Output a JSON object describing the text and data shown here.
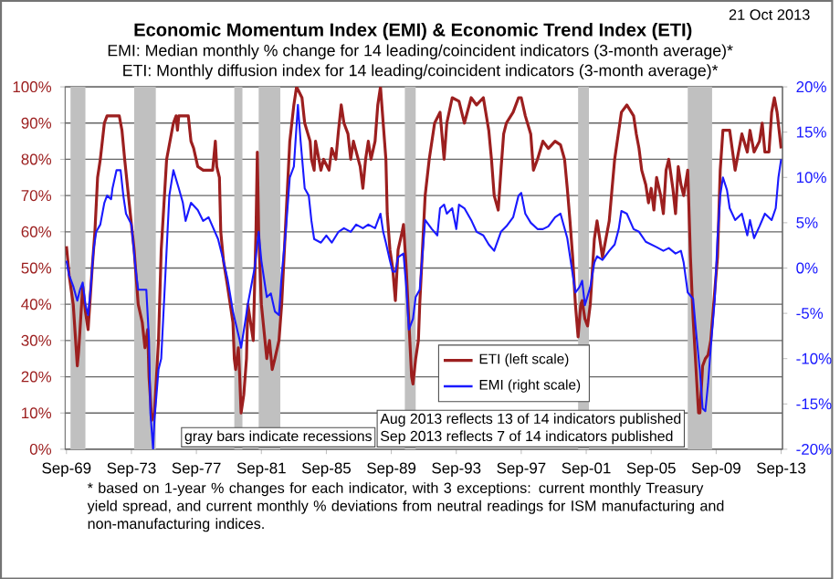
{
  "chart_data": {
    "type": "line",
    "title": "Economic Momentum Index (EMI) & Economic Trend Index (ETI)",
    "subtitle": "EMI:  Median monthly % change for 14 leading/coincident indicators (3-month average)*",
    "annotations": [
      "ETI: Monthly diffusion index for 14 leading/coincident indicators (3-month average)*",
      "21 Oct 2013",
      "gray bars indicate recessions",
      "Aug 2013 reflects 13 of 14 indicators published",
      "Sep 2013 reflects  7 of 14 indicators published",
      "* based on 1-year % changes for each indicator, with 3 exceptions: current monthly Treasury yield spread, and current monthly % deviations from neutral readings for ISM manufacturing and non-manufacturing  indices."
    ],
    "xlim": [
      "1969-08",
      "2013-10"
    ],
    "xticks": [
      {
        "value": "1969-09",
        "label": "Sep-69"
      },
      {
        "value": "1973-09",
        "label": "Sep-73"
      },
      {
        "value": "1977-09",
        "label": "Sep-77"
      },
      {
        "value": "1981-09",
        "label": "Sep-81"
      },
      {
        "value": "1985-09",
        "label": "Sep-85"
      },
      {
        "value": "1989-09",
        "label": "Sep-89"
      },
      {
        "value": "1993-09",
        "label": "Sep-93"
      },
      {
        "value": "1997-09",
        "label": "Sep-97"
      },
      {
        "value": "2001-09",
        "label": "Sep-01"
      },
      {
        "value": "2005-09",
        "label": "Sep-05"
      },
      {
        "value": "2009-09",
        "label": "Sep-09"
      },
      {
        "value": "2013-09",
        "label": "Sep-13"
      }
    ],
    "ylim": [
      0,
      100
    ],
    "yticks": [
      {
        "value": 0,
        "label": "0%"
      },
      {
        "value": 10,
        "label": "10%"
      },
      {
        "value": 20,
        "label": "20%"
      },
      {
        "value": 30,
        "label": "30%"
      },
      {
        "value": 40,
        "label": "40%"
      },
      {
        "value": 50,
        "label": "50%"
      },
      {
        "value": 60,
        "label": "60%"
      },
      {
        "value": 70,
        "label": "70%"
      },
      {
        "value": 80,
        "label": "80%"
      },
      {
        "value": 90,
        "label": "90%"
      },
      {
        "value": 100,
        "label": "100%"
      }
    ],
    "y2lim": [
      -20,
      20
    ],
    "y2ticks": [
      {
        "value": -20,
        "label": "-20%"
      },
      {
        "value": -15,
        "label": "-15%"
      },
      {
        "value": -10,
        "label": "-10%"
      },
      {
        "value": -5,
        "label": "-5%"
      },
      {
        "value": 0,
        "label": "0%"
      },
      {
        "value": 5,
        "label": "5%"
      },
      {
        "value": 10,
        "label": "10%"
      },
      {
        "value": 15,
        "label": "15%"
      },
      {
        "value": 20,
        "label": "20%"
      }
    ],
    "grid": "y",
    "legend": "bottom",
    "line_style": "solid",
    "bands": [
      {
        "axis": "x",
        "from": "1969-12",
        "to": "1970-11",
        "color": "#c0c0c0"
      },
      {
        "axis": "x",
        "from": "1973-11",
        "to": "1975-03",
        "color": "#c0c0c0"
      },
      {
        "axis": "x",
        "from": "1980-01",
        "to": "1980-07",
        "color": "#c0c0c0"
      },
      {
        "axis": "x",
        "from": "1981-07",
        "to": "1982-11",
        "color": "#c0c0c0"
      },
      {
        "axis": "x",
        "from": "1990-07",
        "to": "1991-03",
        "color": "#c0c0c0"
      },
      {
        "axis": "x",
        "from": "2001-03",
        "to": "2001-11",
        "color": "#c0c0c0"
      },
      {
        "axis": "x",
        "from": "2007-12",
        "to": "2009-06",
        "color": "#c0c0c0"
      }
    ],
    "series": [
      {
        "name": "ETI (left scale)",
        "color": "#9c1f1f",
        "x": [
          "1969-09",
          "1969-11",
          "1970-02",
          "1970-05",
          "1970-06",
          "1970-09",
          "1970-11",
          "1971-01",
          "1971-04",
          "1971-06",
          "1971-08",
          "1971-10",
          "1972-01",
          "1972-03",
          "1972-12",
          "1973-02",
          "1973-04",
          "1973-09",
          "1973-11",
          "1974-02",
          "1974-05",
          "1974-07",
          "1974-09",
          "1974-10",
          "1974-12",
          "1975-02",
          "1975-05",
          "1975-07",
          "1975-11",
          "1976-04",
          "1976-06",
          "1976-07",
          "1976-08",
          "1977-03",
          "1977-05",
          "1977-07",
          "1977-10",
          "1978-02",
          "1978-09",
          "1978-11",
          "1978-12",
          "1979-02",
          "1979-03",
          "1979-05",
          "1979-08",
          "1979-10",
          "1979-12",
          "1980-01",
          "1980-02",
          "1980-04",
          "1980-05",
          "1980-06",
          "1980-08",
          "1980-10",
          "1980-11",
          "1981-03",
          "1981-05",
          "1981-06",
          "1981-07",
          "1981-09",
          "1982-01",
          "1982-03",
          "1982-05",
          "1982-07",
          "1982-10",
          "1982-12",
          "1983-02",
          "1983-04",
          "1983-06",
          "1983-09",
          "1983-11",
          "1984-03",
          "1984-05",
          "1984-09",
          "1984-10",
          "1984-12",
          "1985-01",
          "1985-05",
          "1985-07",
          "1985-11",
          "1986-01",
          "1986-04",
          "1986-06",
          "1986-08",
          "1986-10",
          "1987-01",
          "1987-03",
          "1987-05",
          "1987-10",
          "1987-12",
          "1988-02",
          "1988-04",
          "1988-06",
          "1988-09",
          "1988-11",
          "1989-01",
          "1989-03",
          "1989-05",
          "1989-06",
          "1989-08",
          "1989-10",
          "1989-12",
          "1990-02",
          "1990-05",
          "1990-06",
          "1990-08",
          "1990-10",
          "1990-12",
          "1991-01",
          "1991-03",
          "1991-05",
          "1991-06",
          "1991-08",
          "1991-10",
          "1992-01",
          "1992-05",
          "1992-09",
          "1992-12",
          "1993-02",
          "1993-06",
          "1993-11",
          "1994-03",
          "1994-08",
          "1994-12",
          "1995-05",
          "1995-09",
          "1995-11",
          "1996-01",
          "1996-04",
          "1996-06",
          "1996-08",
          "1996-10",
          "1997-03",
          "1997-07",
          "1997-09",
          "1997-12",
          "1998-04",
          "1998-06",
          "1998-09",
          "1999-01",
          "1999-05",
          "1999-10",
          "2000-02",
          "2000-05",
          "2000-07",
          "2000-09",
          "2000-11",
          "2001-01",
          "2001-03",
          "2001-05",
          "2001-06",
          "2001-08",
          "2001-10",
          "2001-12",
          "2002-03",
          "2002-05",
          "2002-09",
          "2003-02",
          "2003-06",
          "2003-11",
          "2004-03",
          "2004-08",
          "2004-10",
          "2004-12",
          "2005-02",
          "2005-05",
          "2005-07",
          "2005-09",
          "2005-11",
          "2006-01",
          "2006-04",
          "2006-06",
          "2006-08",
          "2006-10",
          "2007-01",
          "2007-03",
          "2007-05",
          "2007-07",
          "2007-09",
          "2007-12",
          "2008-02",
          "2008-04",
          "2008-06",
          "2008-08",
          "2008-09",
          "2008-11",
          "2009-01",
          "2009-03",
          "2009-05",
          "2009-10",
          "2009-12",
          "2010-02",
          "2010-07",
          "2010-11",
          "2011-04",
          "2011-08",
          "2011-10",
          "2012-01",
          "2012-05",
          "2012-07",
          "2012-09",
          "2012-12",
          "2013-02",
          "2013-04",
          "2013-06",
          "2013-09"
        ],
        "values": [
          56,
          48,
          40,
          23,
          27,
          45,
          38,
          33,
          50,
          60,
          75,
          80,
          90,
          92,
          92,
          88,
          80,
          62,
          55,
          40,
          35,
          28,
          33,
          20,
          8,
          10,
          30,
          55,
          80,
          90,
          92,
          88,
          92,
          92,
          85,
          83,
          78,
          77,
          77,
          85,
          78,
          75,
          60,
          52,
          45,
          40,
          35,
          25,
          22,
          28,
          20,
          10,
          15,
          25,
          40,
          30,
          60,
          82,
          60,
          40,
          25,
          30,
          22,
          25,
          30,
          40,
          55,
          70,
          85,
          95,
          100,
          97,
          90,
          85,
          80,
          77,
          85,
          77,
          80,
          77,
          83,
          80,
          88,
          95,
          90,
          87,
          80,
          85,
          78,
          72,
          80,
          85,
          80,
          85,
          95,
          100,
          90,
          80,
          65,
          55,
          50,
          41,
          55,
          60,
          62,
          50,
          35,
          20,
          18,
          25,
          30,
          40,
          55,
          70,
          80,
          90,
          93,
          80,
          90,
          97,
          96,
          90,
          97,
          95,
          97,
          88,
          80,
          70,
          66,
          77,
          87,
          90,
          93,
          97,
          97,
          92,
          87,
          77,
          80,
          85,
          83,
          85,
          84,
          80,
          72,
          63,
          53,
          40,
          31,
          40,
          41,
          36,
          34,
          40,
          58,
          63,
          53,
          63,
          80,
          93,
          95,
          92,
          87,
          83,
          77,
          73,
          68,
          72,
          66,
          75,
          70,
          65,
          77,
          80,
          72,
          65,
          78,
          73,
          70,
          77,
          53,
          36,
          23,
          10,
          10,
          23,
          25,
          26,
          30,
          53,
          77,
          88,
          88,
          77,
          87,
          82,
          88,
          82,
          85,
          90,
          82,
          82,
          93,
          97,
          93,
          83
        ]
      },
      {
        "name": "EMI (right scale)",
        "color": "#1a1aff",
        "axis": "y2",
        "x": [
          "1969-09",
          "1969-11",
          "1970-02",
          "1970-05",
          "1970-07",
          "1970-09",
          "1970-11",
          "1971-01",
          "1971-03",
          "1971-05",
          "1971-07",
          "1971-10",
          "1972-01",
          "1972-03",
          "1972-06",
          "1972-07",
          "1972-10",
          "1973-01",
          "1973-03",
          "1973-05",
          "1973-09",
          "1973-12",
          "1974-02",
          "1974-08",
          "1974-10",
          "1974-11",
          "1975-01",
          "1975-02",
          "1975-05",
          "1975-07",
          "1975-11",
          "1976-01",
          "1976-04",
          "1976-08",
          "1976-11",
          "1977-01",
          "1977-05",
          "1977-10",
          "1978-02",
          "1978-06",
          "1979-01",
          "1979-05",
          "1979-08",
          "1979-12",
          "1980-05",
          "1980-06",
          "1980-09",
          "1980-11",
          "1981-04",
          "1981-07",
          "1981-09",
          "1982-01",
          "1982-04",
          "1982-07",
          "1982-10",
          "1982-12",
          "1983-03",
          "1983-06",
          "1983-09",
          "1983-12",
          "1984-02",
          "1984-05",
          "1984-08",
          "1984-10",
          "1984-12",
          "1985-05",
          "1985-09",
          "1986-01",
          "1986-06",
          "1986-10",
          "1987-03",
          "1987-07",
          "1987-12",
          "1988-04",
          "1988-09",
          "1989-01",
          "1989-03",
          "1989-05",
          "1989-08",
          "1989-10",
          "1989-12",
          "1990-02",
          "1990-06",
          "1990-08",
          "1990-10",
          "1991-01",
          "1991-03",
          "1991-06",
          "1991-10",
          "1992-03",
          "1992-07",
          "1992-09",
          "1992-12",
          "1993-02",
          "1993-06",
          "1993-09",
          "1993-11",
          "1994-03",
          "1994-08",
          "1994-12",
          "1995-05",
          "1995-09",
          "1996-01",
          "1996-06",
          "1996-10",
          "1997-03",
          "1997-07",
          "1997-09",
          "1997-12",
          "1998-04",
          "1998-09",
          "1999-01",
          "1999-05",
          "1999-10",
          "2000-02",
          "2000-07",
          "2000-09",
          "2000-11",
          "2001-01",
          "2001-04",
          "2001-06",
          "2001-08",
          "2001-12",
          "2002-03",
          "2002-05",
          "2002-09",
          "2003-02",
          "2003-06",
          "2003-09",
          "2003-11",
          "2004-03",
          "2004-08",
          "2004-12",
          "2005-05",
          "2005-09",
          "2006-01",
          "2006-06",
          "2006-10",
          "2007-03",
          "2007-07",
          "2007-09",
          "2007-12",
          "2008-04",
          "2008-06",
          "2008-09",
          "2008-11",
          "2009-01",
          "2009-03",
          "2009-05",
          "2009-08",
          "2009-10",
          "2009-12",
          "2010-02",
          "2010-05",
          "2010-07",
          "2010-11",
          "2011-04",
          "2011-08",
          "2011-10",
          "2012-01",
          "2012-05",
          "2012-09",
          "2013-02",
          "2013-05",
          "2013-07",
          "2013-09"
        ],
        "values": [
          0.8,
          -0.8,
          -2,
          -3.6,
          -2.4,
          -1.6,
          -4,
          -5.2,
          -2,
          2,
          4,
          4.8,
          7.2,
          8,
          7.6,
          8.8,
          10.8,
          10.8,
          8,
          6,
          4.8,
          0,
          -2.4,
          -2.4,
          -8,
          -16,
          -20,
          -16.8,
          -11.2,
          -10,
          2,
          8,
          10.8,
          8.8,
          7.2,
          5.2,
          7.2,
          6.4,
          5.2,
          5.6,
          3.2,
          0.8,
          -1.2,
          -4.8,
          -8,
          -8.8,
          -6,
          -4,
          0,
          4,
          0.8,
          -3.2,
          -2.8,
          -4.8,
          -5.2,
          -0.8,
          4,
          10,
          11.2,
          18,
          14,
          8.8,
          8,
          5.2,
          3.2,
          2.8,
          3.6,
          2.8,
          4,
          4.4,
          4,
          4.8,
          4.4,
          4.8,
          4.4,
          6,
          4,
          2.8,
          0.8,
          -0.4,
          -0.4,
          1.2,
          1.6,
          -2,
          -6.8,
          -5.6,
          -3.2,
          -2.4,
          5.3,
          4.3,
          3.6,
          6.6,
          7,
          6,
          6.6,
          4.3,
          7,
          6.6,
          5.3,
          4,
          3.6,
          2.6,
          1.9,
          4,
          4.6,
          5.6,
          8,
          8.3,
          6,
          5,
          4.3,
          4.3,
          4.6,
          5.6,
          6,
          3.3,
          1.3,
          -0.7,
          -2.7,
          -2.1,
          -1.4,
          -4.1,
          -2.1,
          0.6,
          1.3,
          0.9,
          1.9,
          2.6,
          4.3,
          6.3,
          6,
          4.3,
          4,
          2.9,
          2.6,
          2.3,
          1.9,
          2.2,
          1.6,
          1.9,
          0.6,
          -2.7,
          -3.4,
          -6.8,
          -11.4,
          -15.5,
          -15.8,
          -12.8,
          -8.8,
          -3.4,
          3.3,
          8,
          10,
          8.6,
          6.6,
          5.3,
          6,
          3.6,
          5.3,
          3.3,
          4.6,
          6,
          5.3,
          6.6,
          10,
          12
        ]
      }
    ]
  }
}
